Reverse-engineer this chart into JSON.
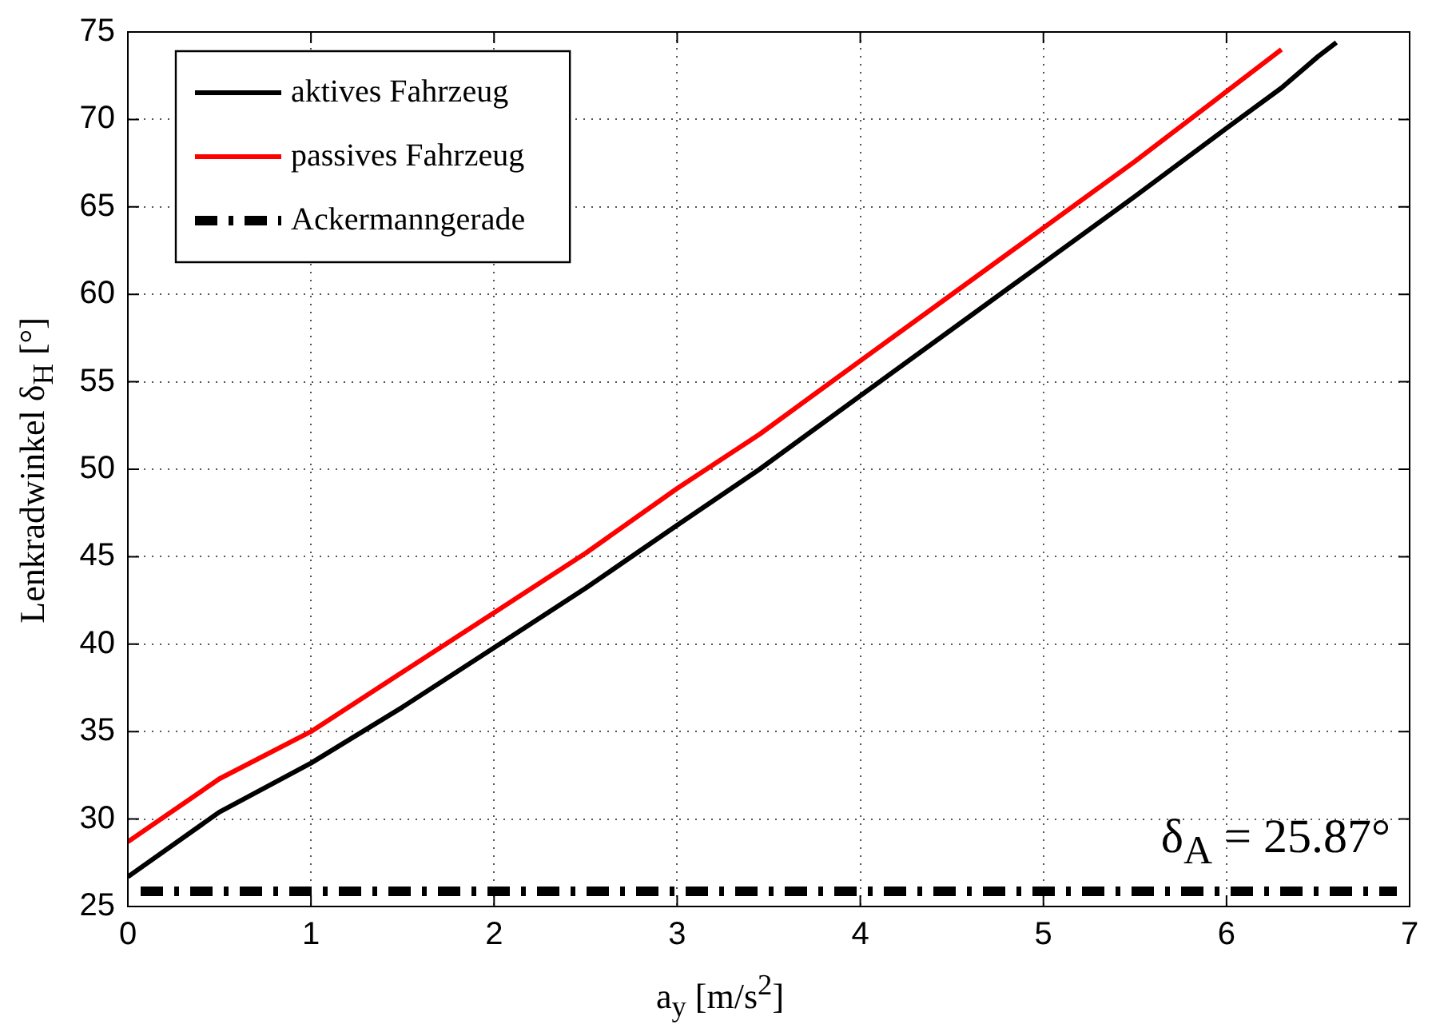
{
  "chart_data": {
    "type": "line",
    "xlabel": "a$_{y}$ [m/s$^{2}$]",
    "ylabel": "Lenkradwinkel δ$_{H}$ [°]",
    "series": [
      {
        "name": "aktives Fahrzeug",
        "color": "#000000",
        "x": [
          0,
          0.5,
          1,
          1.5,
          2,
          2.5,
          3,
          3.45,
          4,
          4.5,
          5,
          5.5,
          6,
          6.3,
          6.5,
          6.6
        ],
        "values": [
          26.7,
          30.4,
          33.2,
          36.4,
          39.8,
          43.2,
          46.8,
          50,
          54.2,
          58,
          61.8,
          65.6,
          69.5,
          71.8,
          73.6,
          74.4
        ]
      },
      {
        "name": "passives Fahrzeug",
        "color": "#ff0000",
        "x": [
          0,
          0.5,
          1,
          1.5,
          2,
          2.5,
          3,
          3.45,
          4,
          4.5,
          5,
          5.5,
          6,
          6.3
        ],
        "values": [
          28.7,
          32.3,
          35,
          38.4,
          41.8,
          45.2,
          48.9,
          52,
          56.2,
          60,
          63.8,
          67.6,
          71.6,
          74
        ]
      }
    ],
    "ref_lines": [
      {
        "axis": "y",
        "value": 25.87,
        "label": "Ackermanngerade",
        "color": "#000000",
        "line_style": "dashed"
      }
    ],
    "annotations": [
      "δ$_{A}$ = 25.87°"
    ],
    "xlim": [
      0,
      7
    ],
    "xticks": [
      0,
      1,
      2,
      3,
      4,
      5,
      6,
      7
    ],
    "ylim": [
      25,
      75
    ],
    "yticks": [
      25,
      30,
      35,
      40,
      45,
      50,
      55,
      60,
      65,
      70,
      75
    ],
    "grid": true,
    "legend": "top left",
    "marker": "none",
    "line_style": "solid"
  }
}
